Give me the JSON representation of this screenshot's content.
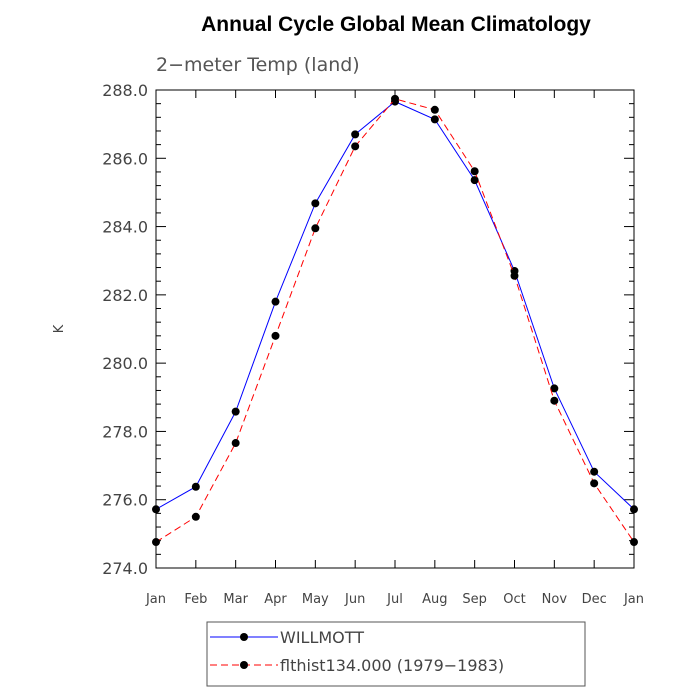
{
  "chart_data": {
    "type": "line",
    "title": "Annual Cycle Global Mean Climatology",
    "subtitle": "2−meter Temp (land)",
    "xlabel": "",
    "ylabel": "K",
    "categories": [
      "Jan",
      "Feb",
      "Mar",
      "Apr",
      "May",
      "Jun",
      "Jul",
      "Aug",
      "Sep",
      "Oct",
      "Nov",
      "Dec",
      "Jan"
    ],
    "ylim": [
      274.0,
      288.0
    ],
    "yticks": [
      "274.0",
      "276.0",
      "278.0",
      "280.0",
      "282.0",
      "284.0",
      "286.0",
      "288.0"
    ],
    "series": [
      {
        "name": "WILLMOTT",
        "color": "#0000ff",
        "dash": "solid",
        "values": [
          275.72,
          276.38,
          278.58,
          281.8,
          284.68,
          286.7,
          287.66,
          287.14,
          285.36,
          282.7,
          279.26,
          276.82,
          275.72
        ]
      },
      {
        "name": "flthist134.000 (1979−1983)",
        "color": "#ff0000",
        "dash": "dashed",
        "values": [
          274.76,
          275.5,
          277.66,
          280.8,
          283.95,
          286.35,
          287.74,
          287.42,
          285.62,
          282.56,
          278.9,
          276.48,
          274.76
        ]
      }
    ],
    "legend_position": "bottom"
  }
}
